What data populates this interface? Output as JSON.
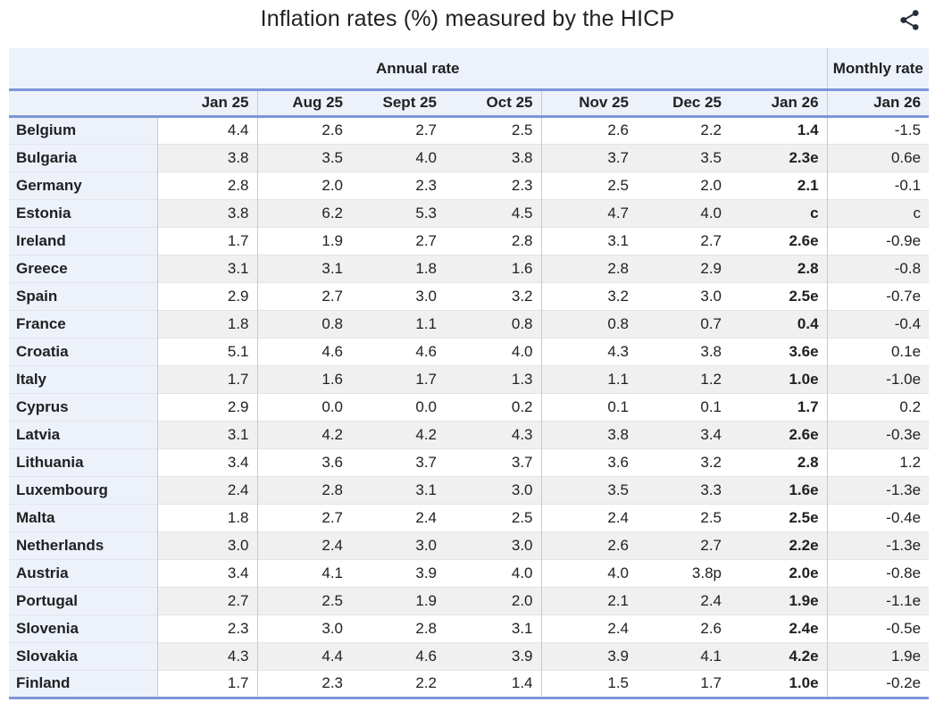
{
  "header": {
    "title": "Inflation rates (%) measured by the HICP"
  },
  "colors": {
    "accent_line_blue": "#7d96d8",
    "header_bg": "#edf1fa",
    "zebra_row_bg": "#f0f0f0",
    "text": "#202122",
    "share_icon": "#242e39",
    "column_border": "#c6c9cf"
  },
  "chart_data": {
    "type": "table",
    "title": "Inflation rates (%) measured by the HICP",
    "column_groups": [
      {
        "label": "Annual rate",
        "span": 8
      },
      {
        "label": "Monthly rate",
        "span": 1
      }
    ],
    "columns": [
      "",
      "Jan 25",
      "Aug 25",
      "Sept 25",
      "Oct 25",
      "Nov 25",
      "Dec 25",
      "Jan 26",
      "Jan 26"
    ],
    "bold_value_column_index": 6,
    "rows": [
      {
        "country": "Belgium",
        "values": [
          "4.4",
          "2.6",
          "2.7",
          "2.5",
          "2.6",
          "2.2",
          "1.4",
          "-1.5"
        ]
      },
      {
        "country": "Bulgaria",
        "values": [
          "3.8",
          "3.5",
          "4.0",
          "3.8",
          "3.7",
          "3.5",
          "2.3e",
          "0.6e"
        ]
      },
      {
        "country": "Germany",
        "values": [
          "2.8",
          "2.0",
          "2.3",
          "2.3",
          "2.5",
          "2.0",
          "2.1",
          "-0.1"
        ]
      },
      {
        "country": "Estonia",
        "values": [
          "3.8",
          "6.2",
          "5.3",
          "4.5",
          "4.7",
          "4.0",
          "c",
          "c"
        ]
      },
      {
        "country": "Ireland",
        "values": [
          "1.7",
          "1.9",
          "2.7",
          "2.8",
          "3.1",
          "2.7",
          "2.6e",
          "-0.9e"
        ]
      },
      {
        "country": "Greece",
        "values": [
          "3.1",
          "3.1",
          "1.8",
          "1.6",
          "2.8",
          "2.9",
          "2.8",
          "-0.8"
        ]
      },
      {
        "country": "Spain",
        "values": [
          "2.9",
          "2.7",
          "3.0",
          "3.2",
          "3.2",
          "3.0",
          "2.5e",
          "-0.7e"
        ]
      },
      {
        "country": "France",
        "values": [
          "1.8",
          "0.8",
          "1.1",
          "0.8",
          "0.8",
          "0.7",
          "0.4",
          "-0.4"
        ]
      },
      {
        "country": "Croatia",
        "values": [
          "5.1",
          "4.6",
          "4.6",
          "4.0",
          "4.3",
          "3.8",
          "3.6e",
          "0.1e"
        ]
      },
      {
        "country": "Italy",
        "values": [
          "1.7",
          "1.6",
          "1.7",
          "1.3",
          "1.1",
          "1.2",
          "1.0e",
          "-1.0e"
        ]
      },
      {
        "country": "Cyprus",
        "values": [
          "2.9",
          "0.0",
          "0.0",
          "0.2",
          "0.1",
          "0.1",
          "1.7",
          "0.2"
        ]
      },
      {
        "country": "Latvia",
        "values": [
          "3.1",
          "4.2",
          "4.2",
          "4.3",
          "3.8",
          "3.4",
          "2.6e",
          "-0.3e"
        ]
      },
      {
        "country": "Lithuania",
        "values": [
          "3.4",
          "3.6",
          "3.7",
          "3.7",
          "3.6",
          "3.2",
          "2.8",
          "1.2"
        ]
      },
      {
        "country": "Luxembourg",
        "values": [
          "2.4",
          "2.8",
          "3.1",
          "3.0",
          "3.5",
          "3.3",
          "1.6e",
          "-1.3e"
        ]
      },
      {
        "country": "Malta",
        "values": [
          "1.8",
          "2.7",
          "2.4",
          "2.5",
          "2.4",
          "2.5",
          "2.5e",
          "-0.4e"
        ]
      },
      {
        "country": "Netherlands",
        "values": [
          "3.0",
          "2.4",
          "3.0",
          "3.0",
          "2.6",
          "2.7",
          "2.2e",
          "-1.3e"
        ]
      },
      {
        "country": "Austria",
        "values": [
          "3.4",
          "4.1",
          "3.9",
          "4.0",
          "4.0",
          "3.8p",
          "2.0e",
          "-0.8e"
        ]
      },
      {
        "country": "Portugal",
        "values": [
          "2.7",
          "2.5",
          "1.9",
          "2.0",
          "2.1",
          "2.4",
          "1.9e",
          "-1.1e"
        ]
      },
      {
        "country": "Slovenia",
        "values": [
          "2.3",
          "3.0",
          "2.8",
          "3.1",
          "2.4",
          "2.6",
          "2.4e",
          "-0.5e"
        ]
      },
      {
        "country": "Slovakia",
        "values": [
          "4.3",
          "4.4",
          "4.6",
          "3.9",
          "3.9",
          "4.1",
          "4.2e",
          "1.9e"
        ]
      },
      {
        "country": "Finland",
        "values": [
          "1.7",
          "2.3",
          "2.2",
          "1.4",
          "1.5",
          "1.7",
          "1.0e",
          "-0.2e"
        ]
      }
    ]
  }
}
